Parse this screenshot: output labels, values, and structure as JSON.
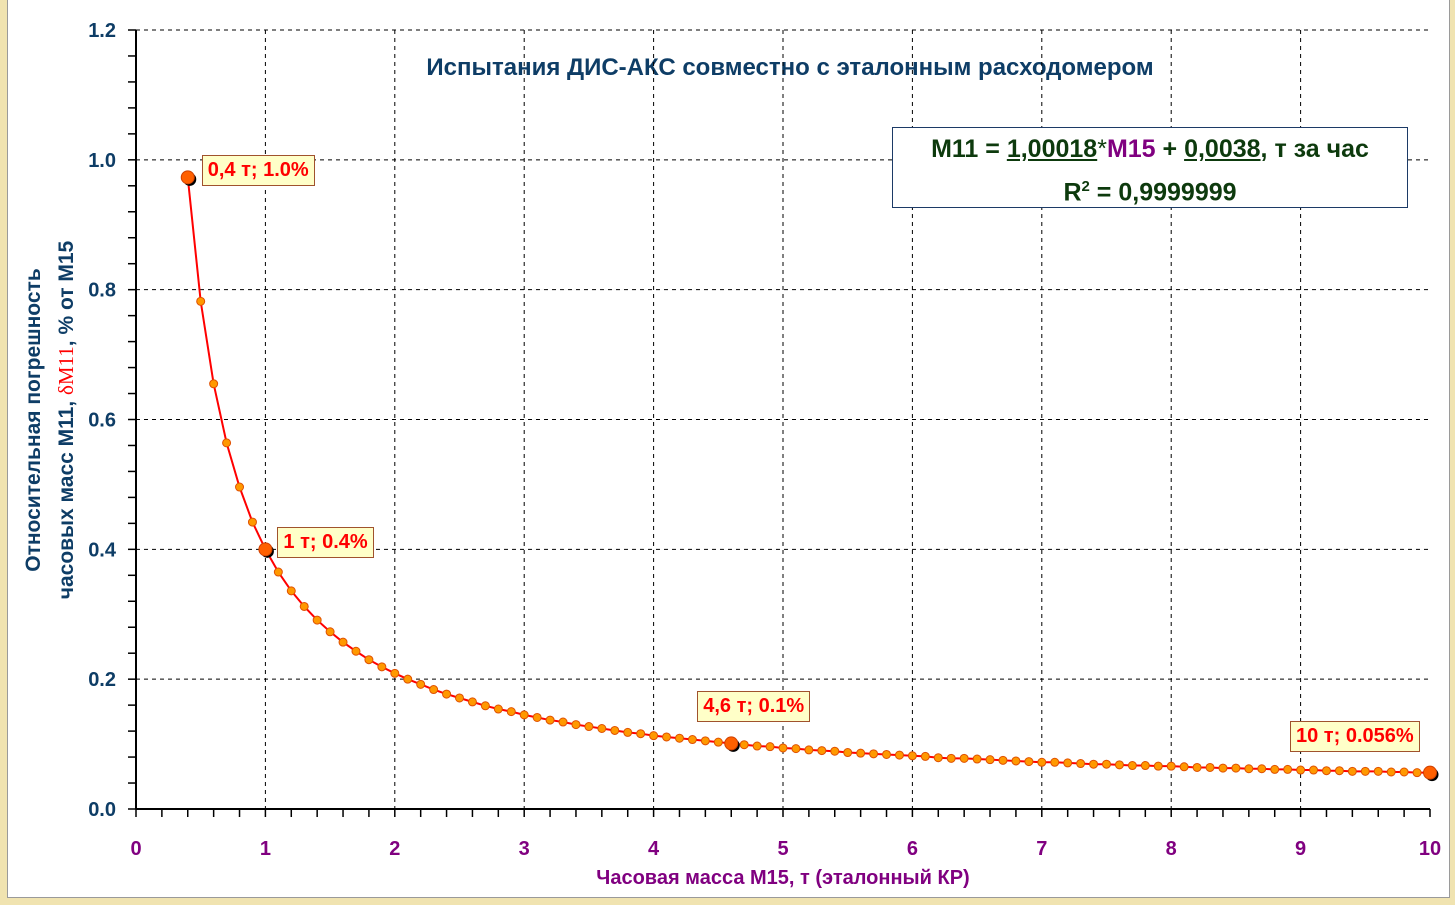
{
  "chart_data": {
    "type": "line",
    "title": "Испытания ДИС-АКС совместно с эталонным расходомером",
    "xlabel": "Часовая масса М15, т (эталонный КР)",
    "ylabel": {
      "line1": "Относительная погрешность",
      "line2_a": "часовых масс М11, ",
      "line2_delta": "δМ11",
      "line2_b": ", % от М15"
    },
    "xlim": [
      0,
      10
    ],
    "ylim": [
      0,
      1.2
    ],
    "x_ticks": [
      "0",
      "1",
      "2",
      "3",
      "4",
      "5",
      "6",
      "7",
      "8",
      "9",
      "10"
    ],
    "y_ticks": [
      "0.0",
      "0.2",
      "0.4",
      "0.6",
      "0.8",
      "1.0",
      "1.2"
    ],
    "grid": true,
    "series": [
      {
        "name": "δМ11",
        "color": "#ff0000",
        "marker_color": "#ff9900",
        "x": [
          0.4,
          0.5,
          0.6,
          0.7,
          0.8,
          0.9,
          1.0,
          1.1,
          1.2,
          1.3,
          1.4,
          1.5,
          1.6,
          1.7,
          1.8,
          1.9,
          2.0,
          2.1,
          2.2,
          2.3,
          2.4,
          2.5,
          2.6,
          2.7,
          2.8,
          2.9,
          3.0,
          3.1,
          3.2,
          3.3,
          3.4,
          3.5,
          3.6,
          3.7,
          3.8,
          3.9,
          4.0,
          4.1,
          4.2,
          4.3,
          4.4,
          4.5,
          4.6,
          4.7,
          4.8,
          4.9,
          5.0,
          5.1,
          5.2,
          5.3,
          5.4,
          5.5,
          5.6,
          5.7,
          5.8,
          5.9,
          6.0,
          6.1,
          6.2,
          6.3,
          6.4,
          6.5,
          6.6,
          6.7,
          6.8,
          6.9,
          7.0,
          7.1,
          7.2,
          7.3,
          7.4,
          7.5,
          7.6,
          7.7,
          7.8,
          7.9,
          8.0,
          8.1,
          8.2,
          8.3,
          8.4,
          8.5,
          8.6,
          8.7,
          8.8,
          8.9,
          9.0,
          9.1,
          9.2,
          9.3,
          9.4,
          9.5,
          9.6,
          9.7,
          9.8,
          9.9,
          10.0
        ],
        "y": [
          0.973,
          0.782,
          0.655,
          0.564,
          0.496,
          0.442,
          0.4,
          0.365,
          0.336,
          0.312,
          0.291,
          0.273,
          0.257,
          0.243,
          0.23,
          0.219,
          0.209,
          0.2,
          0.192,
          0.184,
          0.177,
          0.171,
          0.165,
          0.159,
          0.154,
          0.15,
          0.145,
          0.141,
          0.137,
          0.134,
          0.13,
          0.127,
          0.124,
          0.121,
          0.118,
          0.116,
          0.113,
          0.111,
          0.109,
          0.107,
          0.105,
          0.103,
          0.101,
          0.099,
          0.097,
          0.096,
          0.094,
          0.093,
          0.091,
          0.09,
          0.089,
          0.087,
          0.086,
          0.085,
          0.084,
          0.083,
          0.082,
          0.081,
          0.079,
          0.078,
          0.078,
          0.077,
          0.076,
          0.075,
          0.074,
          0.073,
          0.072,
          0.072,
          0.071,
          0.07,
          0.069,
          0.069,
          0.068,
          0.067,
          0.067,
          0.066,
          0.066,
          0.065,
          0.064,
          0.064,
          0.063,
          0.063,
          0.062,
          0.062,
          0.061,
          0.061,
          0.06,
          0.06,
          0.059,
          0.059,
          0.058,
          0.058,
          0.058,
          0.057,
          0.057,
          0.056,
          0.056
        ]
      }
    ],
    "highlight_points": [
      {
        "x": 0.4,
        "y": 0.973,
        "label": "0,4 т; 1.0%"
      },
      {
        "x": 1.0,
        "y": 0.4,
        "label": "1 т; 0.4%"
      },
      {
        "x": 4.6,
        "y": 0.101,
        "label": "4,6 т; 0.1%"
      },
      {
        "x": 10.0,
        "y": 0.056,
        "label": "10 т; 0.056%"
      }
    ],
    "equation": {
      "lhs": "M11 = ",
      "slope": "1,00018",
      "times": "*",
      "var": "M15",
      "plus": " + ",
      "intercept": "0,0038",
      "unit": ", т за час",
      "r2_label": "R",
      "r2_sup": "2",
      "r2_value": " = 0,9999999"
    }
  }
}
